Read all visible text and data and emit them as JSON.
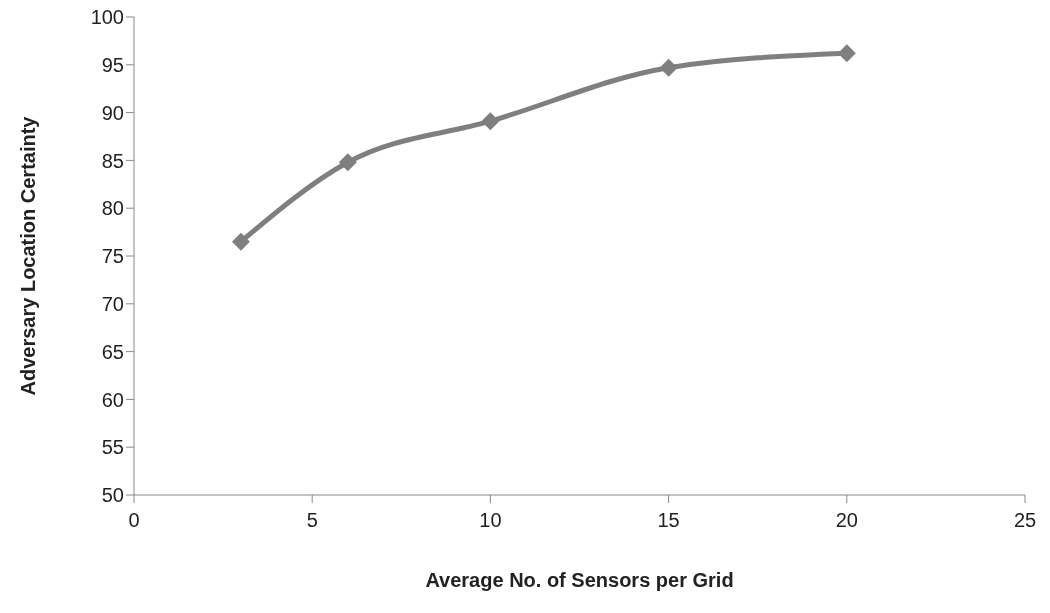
{
  "chart_data": {
    "type": "line",
    "xlabel": "Average No. of Sensors per Grid",
    "ylabel": "Adversary Location Certainty",
    "x": [
      3,
      6,
      10,
      15,
      20
    ],
    "series": [
      {
        "color": "#7f7f7f",
        "values": [
          76.5,
          84.8,
          89.1,
          94.7,
          96.2
        ]
      }
    ],
    "xlim": [
      0,
      25
    ],
    "xticks": [
      0,
      5,
      10,
      15,
      20,
      25
    ],
    "ylim": [
      50,
      100
    ],
    "yticks": [
      50,
      55,
      60,
      65,
      70,
      75,
      80,
      85,
      90,
      95,
      100
    ],
    "grid": false,
    "legend": false,
    "marker": "diamond",
    "line_style": "solid"
  }
}
